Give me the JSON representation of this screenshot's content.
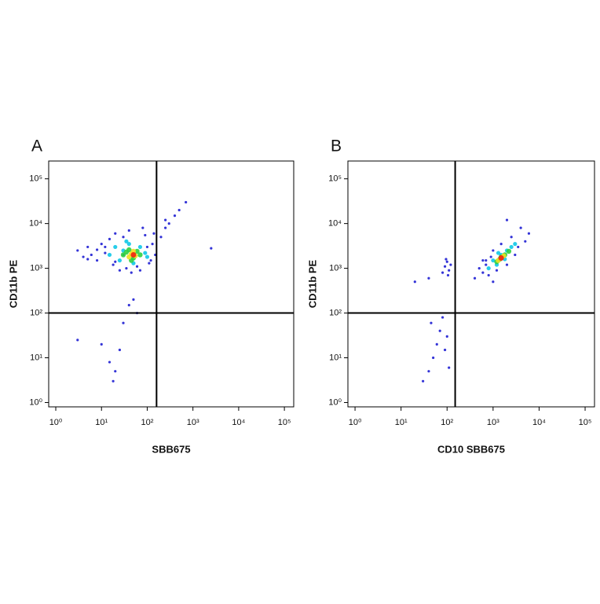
{
  "chart_data": [
    {
      "type": "scatter",
      "panel_label": "A",
      "x_label": "SBB675",
      "y_label": "CD11b PE",
      "log": true,
      "xlim": [
        0.7,
        160000
      ],
      "ylim": [
        0.8,
        250000
      ],
      "xticks": [
        {
          "value": 1,
          "label": "10⁰"
        },
        {
          "value": 10,
          "label": "10¹"
        },
        {
          "value": 100,
          "label": "10²"
        },
        {
          "value": 1000,
          "label": "10³"
        },
        {
          "value": 10000,
          "label": "10⁴"
        },
        {
          "value": 100000,
          "label": "10⁵"
        }
      ],
      "yticks": [
        {
          "value": 1,
          "label": "10⁰"
        },
        {
          "value": 10,
          "label": "10¹"
        },
        {
          "value": 100,
          "label": "10²"
        },
        {
          "value": 1000,
          "label": "10³"
        },
        {
          "value": 10000,
          "label": "10⁴"
        },
        {
          "value": 100000,
          "label": "10⁵"
        }
      ],
      "gates": {
        "x": 160,
        "y": 100
      },
      "series": [
        {
          "color": "#1010d0",
          "x": [
            3,
            4,
            5,
            6,
            8,
            10,
            12,
            15,
            18,
            20,
            25,
            30,
            35,
            40,
            60,
            80,
            100,
            120,
            140,
            150,
            5,
            8,
            12,
            20,
            30,
            45,
            70,
            90,
            110,
            130,
            200,
            250,
            300,
            400,
            500,
            700,
            250,
            2500,
            10,
            15,
            20,
            25,
            30,
            40,
            50,
            60,
            3,
            18
          ],
          "values": [
            2500,
            1800,
            3000,
            2000,
            1500,
            3500,
            2200,
            4500,
            1200,
            6000,
            900,
            5000,
            1000,
            7000,
            1100,
            8000,
            3000,
            1500,
            6000,
            2000,
            1600,
            2600,
            3000,
            1400,
            2000,
            800,
            900,
            5500,
            1300,
            3500,
            5000,
            8000,
            10000,
            15000,
            20000,
            30000,
            12000,
            2800,
            20,
            8,
            5,
            15,
            60,
            150,
            200,
            100,
            25,
            3
          ]
        },
        {
          "color": "#10c8e8",
          "x": [
            15,
            20,
            25,
            30,
            40,
            50,
            70,
            90,
            100,
            35
          ],
          "values": [
            2000,
            3000,
            1500,
            2500,
            3500,
            1300,
            3000,
            2200,
            1800,
            4000
          ]
        },
        {
          "color": "#30d040",
          "x": [
            30,
            40,
            50,
            60,
            70,
            45,
            35
          ],
          "values": [
            2000,
            2600,
            1700,
            2400,
            2000,
            1500,
            2300
          ]
        },
        {
          "color": "#f0e020",
          "x": [
            45,
            55,
            50,
            40
          ],
          "values": [
            2100,
            1900,
            2400,
            1800
          ]
        },
        {
          "color": "#f02010",
          "x": [
            50
          ],
          "values": [
            2000
          ]
        }
      ]
    },
    {
      "type": "scatter",
      "panel_label": "B",
      "x_label": "CD10 SBB675",
      "y_label": "CD11b PE",
      "log": true,
      "xlim": [
        0.7,
        160000
      ],
      "ylim": [
        0.8,
        250000
      ],
      "xticks": [
        {
          "value": 1,
          "label": "10⁰"
        },
        {
          "value": 10,
          "label": "10¹"
        },
        {
          "value": 100,
          "label": "10²"
        },
        {
          "value": 1000,
          "label": "10³"
        },
        {
          "value": 10000,
          "label": "10⁴"
        },
        {
          "value": 100000,
          "label": "10⁵"
        }
      ],
      "yticks": [
        {
          "value": 1,
          "label": "10⁰"
        },
        {
          "value": 10,
          "label": "10¹"
        },
        {
          "value": 100,
          "label": "10²"
        },
        {
          "value": 1000,
          "label": "10³"
        },
        {
          "value": 10000,
          "label": "10⁴"
        },
        {
          "value": 100000,
          "label": "10⁵"
        }
      ],
      "gates": {
        "x": 150,
        "y": 100
      },
      "series": [
        {
          "color": "#1010d0",
          "x": [
            400,
            500,
            600,
            700,
            800,
            1000,
            1200,
            1500,
            2000,
            2500,
            3000,
            4000,
            5000,
            6000,
            700,
            900,
            3500,
            2000,
            1000,
            600,
            80,
            90,
            100,
            110,
            120,
            95,
            105,
            20,
            40,
            30,
            40,
            50,
            60,
            70,
            80,
            90,
            100,
            110,
            45
          ],
          "values": [
            600,
            1000,
            800,
            1500,
            700,
            2500,
            900,
            3500,
            1200,
            5000,
            2000,
            8000,
            4000,
            6000,
            1200,
            1800,
            3000,
            12000,
            500,
            1500,
            800,
            1100,
            1400,
            900,
            1200,
            1600,
            700,
            500,
            600,
            3,
            5,
            10,
            20,
            40,
            80,
            15,
            30,
            6,
            60
          ]
        },
        {
          "color": "#10c8e8",
          "x": [
            800,
            1000,
            1200,
            1500,
            2000,
            2500,
            3000,
            1800,
            1300
          ],
          "values": [
            1000,
            1500,
            1200,
            2000,
            2500,
            3000,
            3500,
            1600,
            2200
          ]
        },
        {
          "color": "#30d040",
          "x": [
            1200,
            1500,
            1800,
            2200,
            1400
          ],
          "values": [
            1400,
            1800,
            2000,
            2400,
            1600
          ]
        },
        {
          "color": "#f0e020",
          "x": [
            1500,
            1700,
            1300
          ],
          "values": [
            1700,
            1900,
            1500
          ]
        },
        {
          "color": "#f02010",
          "x": [
            1500
          ],
          "values": [
            1700
          ]
        }
      ]
    }
  ]
}
